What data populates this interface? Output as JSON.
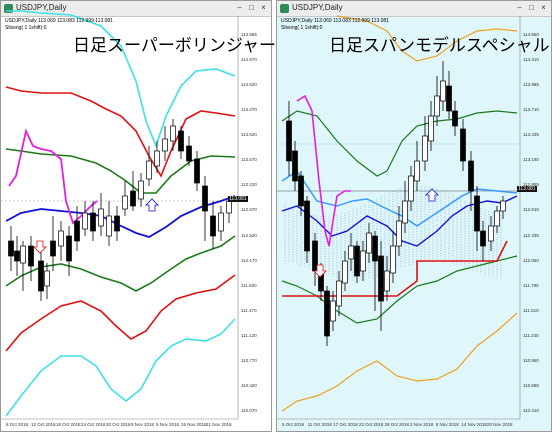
{
  "left": {
    "window_title": "USDJPY,Daily",
    "info_line1": "USDJPY,Daily  113.069 113.083 112.999 113.081",
    "info_line2": "Slisong( 1 1shift):0",
    "heading": "日足スーパーボリンジャー",
    "price_labels": [
      "113.565",
      "114.970",
      "114.620",
      "114.270",
      "113.920",
      "113.570",
      "113.220",
      "112.870",
      "112.520",
      "112.170",
      "111.820",
      "111.470",
      "111.120",
      "110.770",
      "110.420",
      "110.070"
    ],
    "current_price": "113.081",
    "date_labels": [
      "8 Oct 2018",
      "12 Oct 2018",
      "18 Oct 2018",
      "24 Oct 2018",
      "30 Oct 2018",
      "5 Nov 2018",
      "9 Nov 2018",
      "15 Nov 2018",
      "21 Nov 2018"
    ]
  },
  "right": {
    "window_title": "USDJPY,Daily",
    "info_line1": "USDJPY,Daily  113.069 113.083 112.999 113.081",
    "info_line2": "Slisong( 1 1shift):0",
    "heading": "日足スパンモデルスペシャル",
    "price_labels": [
      "114.560",
      "114.310",
      "113.985",
      "113.710",
      "113.435",
      "113.160",
      "112.885",
      "112.610",
      "112.335",
      "112.060",
      "111.785",
      "111.510",
      "111.235",
      "110.960",
      "110.685",
      "110.410"
    ],
    "current_price": "113.081",
    "date_labels": [
      "5 Oct 2018",
      "11 Oct 2018",
      "17 Oct 2018",
      "23 Oct 2018",
      "29 Oct 2018",
      "2 Nov 2018",
      "8 Nov 2018",
      "14 Nov 2018",
      "20 Nov 2018"
    ]
  },
  "colors": {
    "cyan": "#3ee0e8",
    "red": "#e01010",
    "green": "#1a7a1a",
    "blue": "#1010d8",
    "magenta": "#e020e0",
    "orange": "#f0a020",
    "lightblue": "#3399ff"
  }
}
